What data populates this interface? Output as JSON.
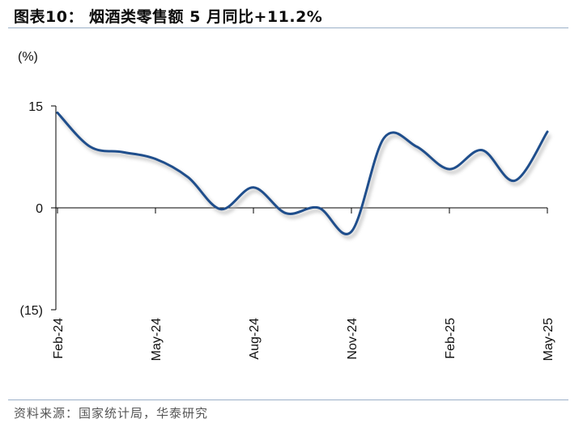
{
  "title": "图表10： 烟酒类零售额 5 月同比+11.2%",
  "source": "资料来源：国家统计局，华泰研究",
  "chart_data": {
    "type": "line",
    "title": "烟酒类零售额 5 月同比+11.2%",
    "ylabel": "(%)",
    "xlabel": "",
    "ylim": [
      -15,
      15
    ],
    "yticks": [
      15,
      0,
      -15
    ],
    "ytick_labels": [
      "15",
      "0",
      "(15)"
    ],
    "xtick_labels": [
      "Feb-24",
      "May-24",
      "Aug-24",
      "Nov-24",
      "Feb-25",
      "May-25"
    ],
    "xtick_positions": [
      0,
      3,
      6,
      9,
      12,
      15
    ],
    "grid": false,
    "series_color": "#1f4e8c",
    "series": [
      {
        "values": [
          {
            "x": 0,
            "y": 14.0
          },
          {
            "x": 1,
            "y": 9.0
          },
          {
            "x": 2,
            "y": 8.2
          },
          {
            "x": 3,
            "y": 7.2
          },
          {
            "x": 4,
            "y": 4.5
          },
          {
            "x": 5,
            "y": -0.2
          },
          {
            "x": 6,
            "y": 3.0
          },
          {
            "x": 7,
            "y": -0.8
          },
          {
            "x": 8,
            "y": 0.0
          },
          {
            "x": 9,
            "y": -3.5
          },
          {
            "x": 10,
            "y": 10.3
          },
          {
            "x": 11,
            "y": 9.0
          },
          {
            "x": 12,
            "y": 5.7
          },
          {
            "x": 13,
            "y": 8.5
          },
          {
            "x": 14,
            "y": 4.0
          },
          {
            "x": 15,
            "y": 11.2
          }
        ]
      }
    ]
  }
}
